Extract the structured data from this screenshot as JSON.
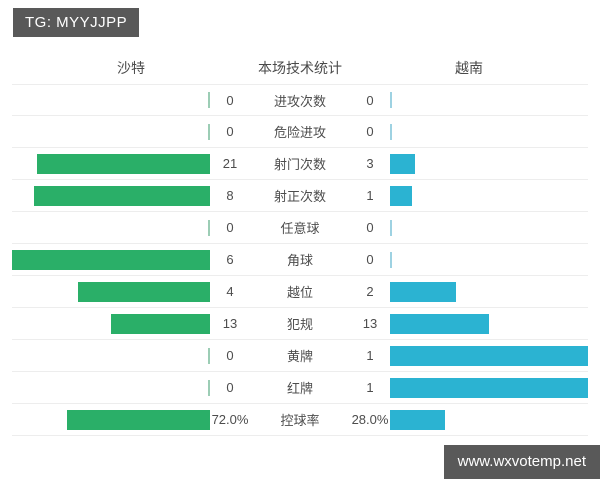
{
  "badge": {
    "text": "TG: MYYJJPP"
  },
  "table_header": {
    "left_team": "沙特",
    "title": "本场技术统计",
    "right_team": "越南"
  },
  "watermark": {
    "text": "www.wxvotemp.net"
  },
  "colors": {
    "left_bar": "#2aaf68",
    "right_bar": "#2bb3d2",
    "left_zero_tick": "#9ccdb5",
    "right_zero_tick": "#9ed2e2",
    "badge_background": "#595959",
    "watermark_background": "#595959",
    "row_border": "#ededed",
    "text": "#4d4d4d"
  },
  "chart_data": {
    "type": "bar",
    "orientation": "diverging-horizontal",
    "title": "本场技术统计",
    "legend_position": "top",
    "grid": false,
    "bar_scale": "each side's bar width = value / (left value + right value); zero values drawn as a thin tick at the baseline",
    "categories": [
      "进攻次数",
      "危险进攻",
      "射门次数",
      "射正次数",
      "任意球",
      "角球",
      "越位",
      "犯规",
      "黄牌",
      "红牌",
      "控球率"
    ],
    "series": [
      {
        "name": "沙特",
        "side": "left",
        "color": "#2aaf68",
        "values": [
          "0",
          "0",
          "21",
          "8",
          "0",
          "6",
          "4",
          "13",
          "0",
          "0",
          "72.0%"
        ]
      },
      {
        "name": "越南",
        "side": "right",
        "color": "#2bb3d2",
        "values": [
          "0",
          "0",
          "3",
          "1",
          "0",
          "0",
          "2",
          "13",
          "1",
          "1",
          "28.0%"
        ]
      }
    ]
  }
}
